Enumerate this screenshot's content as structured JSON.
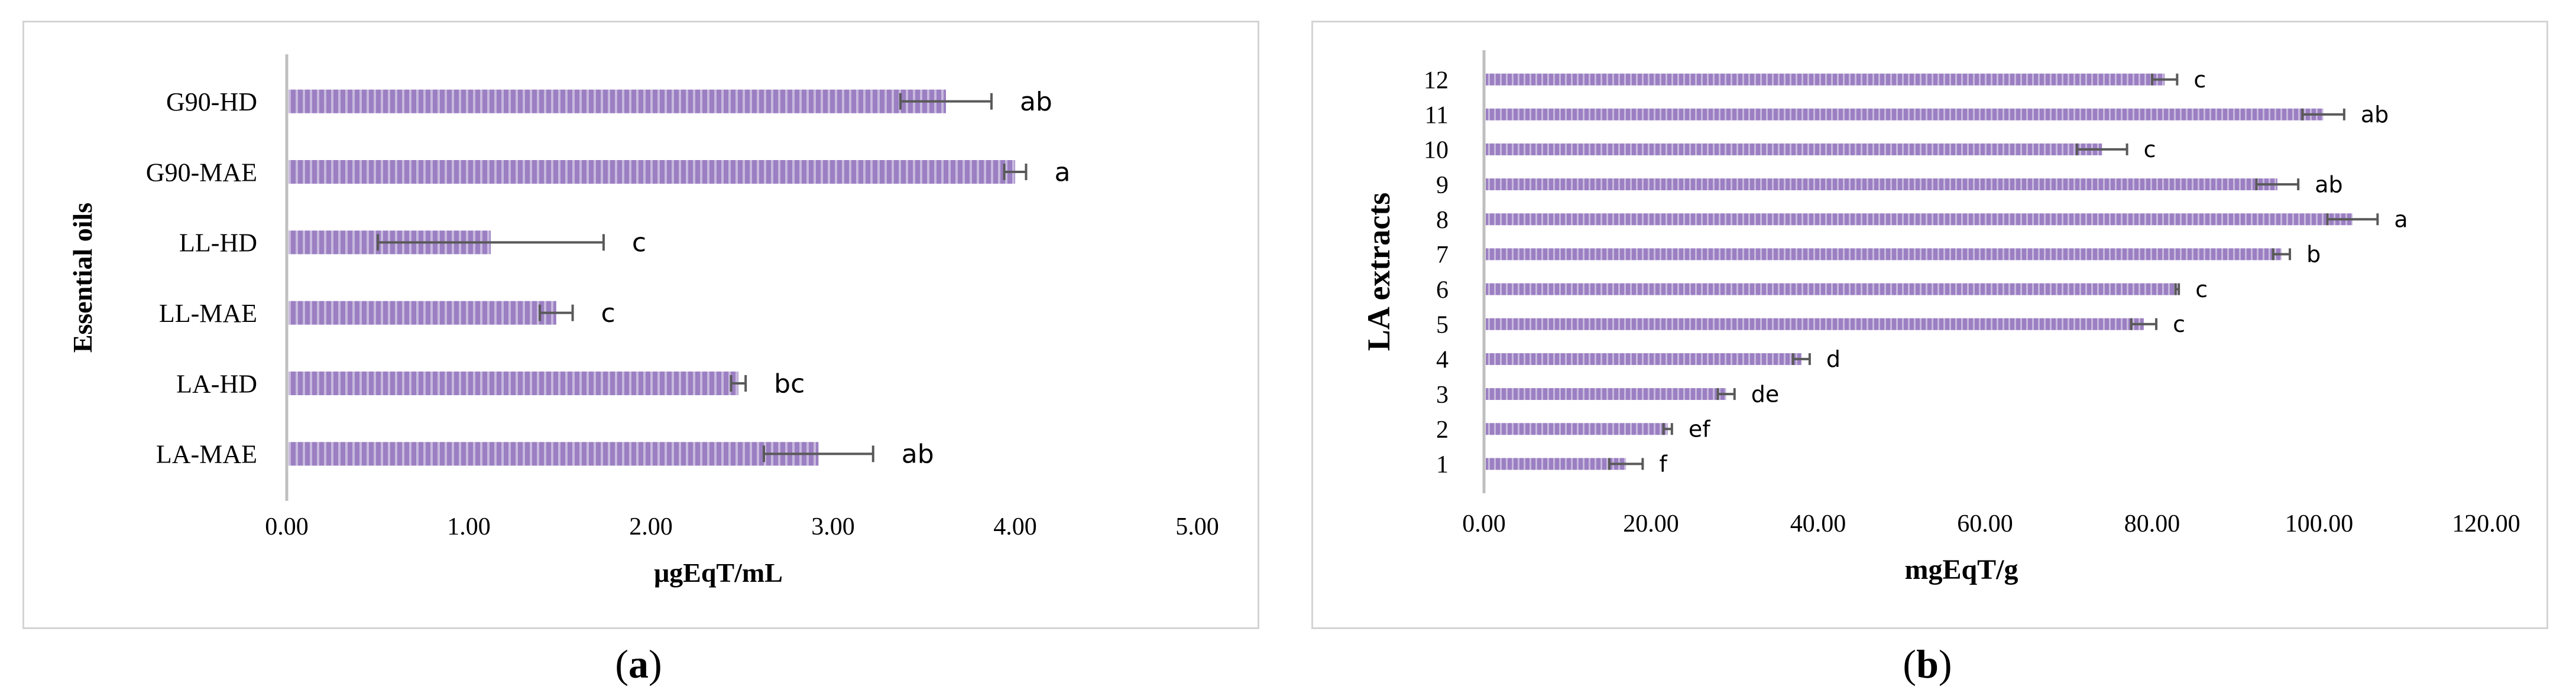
{
  "colors": {
    "bar": "#9b7fc2",
    "bar_stripe": "#ffffff",
    "axis": "#bfbfbf",
    "error": "#595959",
    "text": "#000000"
  },
  "panels": [
    {
      "caption_letter": "a",
      "chart_data": {
        "type": "bar",
        "orientation": "horizontal",
        "categories": [
          "G90-HD",
          "G90-MAE",
          "LL-HD",
          "LL-MAE",
          "LA-HD",
          "LA-MAE"
        ],
        "values": [
          3.62,
          4.0,
          1.12,
          1.48,
          2.48,
          2.92
        ],
        "errors": [
          0.25,
          0.06,
          0.62,
          0.09,
          0.04,
          0.3
        ],
        "letters": [
          "ab",
          "a",
          "c",
          "c",
          "bc",
          "ab"
        ],
        "xlabel": "μgEqT/mL",
        "ylabel": "Essential oils",
        "xlim": [
          0,
          5
        ],
        "xticks": [
          "0.00",
          "1.00",
          "2.00",
          "3.00",
          "4.00",
          "5.00"
        ],
        "grid": false,
        "legend": "none"
      }
    },
    {
      "caption_letter": "b",
      "chart_data": {
        "type": "bar",
        "orientation": "horizontal",
        "categories": [
          "12",
          "11",
          "10",
          "9",
          "8",
          "7",
          "6",
          "5",
          "4",
          "3",
          "2",
          "1"
        ],
        "values": [
          81.5,
          100.5,
          74.0,
          95.0,
          104.0,
          95.5,
          83.0,
          79.0,
          38.0,
          29.0,
          22.0,
          17.0
        ],
        "errors": [
          1.5,
          2.5,
          3.0,
          2.5,
          3.0,
          1.0,
          0.2,
          1.5,
          1.0,
          1.0,
          0.5,
          2.0
        ],
        "letters": [
          "c",
          "ab",
          "c",
          "ab",
          "a",
          "b",
          "c",
          "c",
          "d",
          "de",
          "ef",
          "f"
        ],
        "xlabel": "mgEqT/g",
        "ylabel": "LA extracts",
        "xlim": [
          0,
          120
        ],
        "xticks": [
          "0.00",
          "20.00",
          "40.00",
          "60.00",
          "80.00",
          "100.00",
          "120.00"
        ],
        "grid": false,
        "legend": "none"
      }
    }
  ]
}
